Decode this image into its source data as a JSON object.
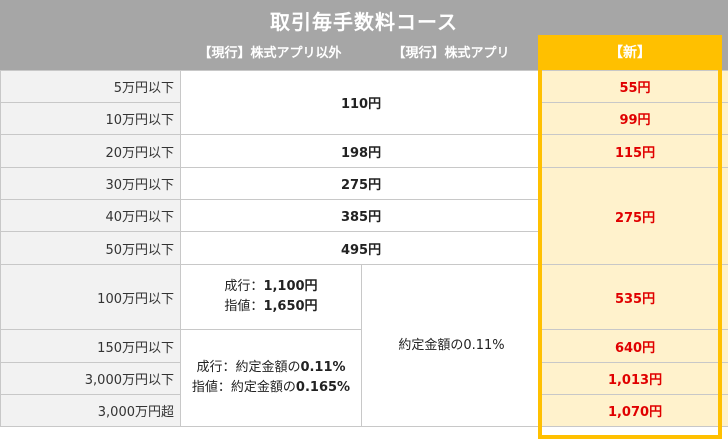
{
  "title": "取引毎手数料コース",
  "headers": {
    "current_other": "【現行】株式アプリ以外",
    "current_app": "【現行】株式アプリ",
    "new": "【新】"
  },
  "rows": [
    {
      "range": "5万円以下",
      "new": "55円"
    },
    {
      "range": "10万円以下",
      "new": "99円"
    },
    {
      "range": "20万円以下",
      "new": "115円"
    },
    {
      "range": "30万円以下"
    },
    {
      "range": "40万円以下",
      "new": "275円"
    },
    {
      "range": "50万円以下"
    },
    {
      "range": "100万円以下",
      "new": "535円"
    },
    {
      "range": "150万円以下",
      "new": "640円"
    },
    {
      "range": "3,000万円以下",
      "new": "1,013円"
    },
    {
      "range": "3,000万円超",
      "new": "1,070円"
    }
  ],
  "current": {
    "up_to_10": "110円",
    "up_to_20": "198円",
    "up_to_30": "275円",
    "up_to_40": "385円",
    "up_to_50": "495円",
    "market_100_label": "成行：",
    "market_100_value": "1,100円",
    "limit_100_label": "指値：",
    "limit_100_value": "1,650円",
    "app_over_50": "約定金額の0.11%",
    "market_over_100_label": "成行：約定金額の",
    "market_over_100_value": "0.11%",
    "limit_over_100_label": "指値：約定金額の",
    "limit_over_100_value": "0.165%"
  }
}
